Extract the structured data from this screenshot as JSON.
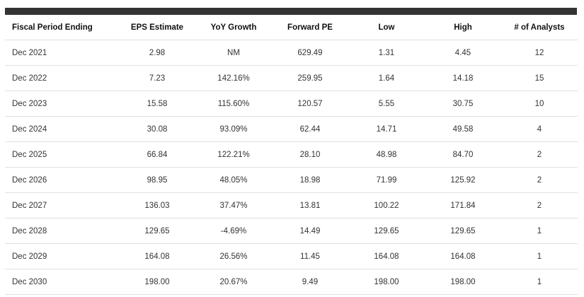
{
  "table": {
    "columns": [
      "Fiscal Period Ending",
      "EPS Estimate",
      "YoY Growth",
      "Forward PE",
      "Low",
      "High",
      "# of Analysts"
    ],
    "rows": [
      [
        "Dec 2021",
        "2.98",
        "NM",
        "629.49",
        "1.31",
        "4.45",
        "12"
      ],
      [
        "Dec 2022",
        "7.23",
        "142.16%",
        "259.95",
        "1.64",
        "14.18",
        "15"
      ],
      [
        "Dec 2023",
        "15.58",
        "115.60%",
        "120.57",
        "5.55",
        "30.75",
        "10"
      ],
      [
        "Dec 2024",
        "30.08",
        "93.09%",
        "62.44",
        "14.71",
        "49.58",
        "4"
      ],
      [
        "Dec 2025",
        "66.84",
        "122.21%",
        "28.10",
        "48.98",
        "84.70",
        "2"
      ],
      [
        "Dec 2026",
        "98.95",
        "48.05%",
        "18.98",
        "71.99",
        "125.92",
        "2"
      ],
      [
        "Dec 2027",
        "136.03",
        "37.47%",
        "13.81",
        "100.22",
        "171.84",
        "2"
      ],
      [
        "Dec 2028",
        "129.65",
        "-4.69%",
        "14.49",
        "129.65",
        "129.65",
        "1"
      ],
      [
        "Dec 2029",
        "164.08",
        "26.56%",
        "11.45",
        "164.08",
        "164.08",
        "1"
      ],
      [
        "Dec 2030",
        "198.00",
        "20.67%",
        "9.49",
        "198.00",
        "198.00",
        "1"
      ]
    ]
  }
}
